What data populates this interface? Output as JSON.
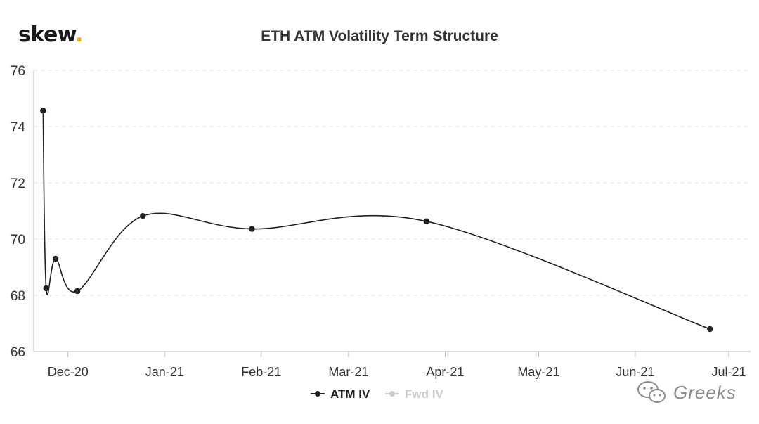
{
  "brand": {
    "name": "skew",
    "dot": ".",
    "dot_color": "#e6b022"
  },
  "watermark": {
    "text": "Greeks",
    "icon": "wechat-icon"
  },
  "chart_data": {
    "type": "line",
    "title": "ETH ATM Volatility Term Structure",
    "xlabel": "",
    "ylabel": "",
    "x_tick_labels": [
      "Dec-20",
      "Jan-21",
      "Feb-21",
      "Mar-21",
      "Apr-21",
      "May-21",
      "Jun-21",
      "Jul-21"
    ],
    "x_tick_dates": [
      "2020-12-01",
      "2021-01-01",
      "2021-02-01",
      "2021-03-01",
      "2021-04-01",
      "2021-05-01",
      "2021-06-01",
      "2021-07-01"
    ],
    "xlim": [
      "2020-11-20",
      "2021-07-08"
    ],
    "ylim": [
      66,
      76
    ],
    "y_ticks": [
      66,
      68,
      70,
      72,
      74,
      76
    ],
    "grid": true,
    "legend_position": "bottom-center",
    "series": [
      {
        "name": "ATM IV",
        "color": "#222222",
        "visible": true,
        "x": [
          "2020-11-23",
          "2020-11-24",
          "2020-11-27",
          "2020-12-04",
          "2020-12-25",
          "2021-01-29",
          "2021-03-26",
          "2021-06-25"
        ],
        "y": [
          74.57,
          68.25,
          69.3,
          68.15,
          70.82,
          70.36,
          70.63,
          66.8
        ]
      },
      {
        "name": "Fwd IV",
        "color": "#cccccc",
        "visible": false,
        "x": [],
        "y": []
      }
    ]
  }
}
